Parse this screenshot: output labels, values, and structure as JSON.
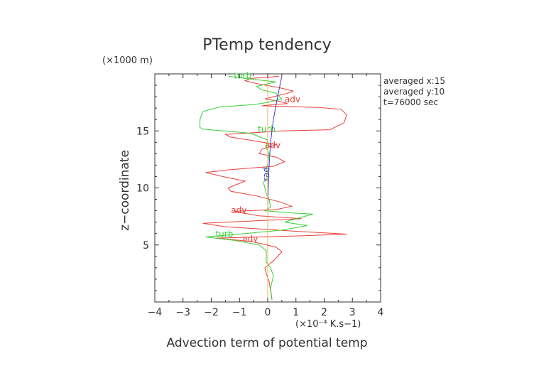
{
  "chart_data": {
    "type": "line",
    "title": "PTemp tendency",
    "xlabel": "Advection term of potential temp",
    "ylabel": "z−coordinate",
    "x_unit": "(×10⁻⁴ K.s−1)",
    "y_unit": "(×1000 m)",
    "xlim": [
      -4,
      4
    ],
    "ylim": [
      0,
      20
    ],
    "grid": false,
    "x_ticks": [
      "−4",
      "−3",
      "−2",
      "−1",
      "0",
      "1",
      "2",
      "3",
      "4"
    ],
    "y_ticks": [
      "5",
      "10",
      "15"
    ],
    "notes": [
      "averaged  x:15",
      "averaged  y:10",
      "t=76000 sec"
    ],
    "series": [
      {
        "name": "adv",
        "color": "#e8403a",
        "points": [
          [
            0.15,
            0.2
          ],
          [
            0.1,
            1.0
          ],
          [
            0.05,
            1.8
          ],
          [
            -0.05,
            2.5
          ],
          [
            -0.1,
            3.0
          ],
          [
            0.2,
            3.6
          ],
          [
            0.5,
            4.4
          ],
          [
            0.3,
            4.8
          ],
          [
            -0.2,
            5.1
          ],
          [
            -0.6,
            5.3
          ],
          [
            -1.8,
            5.6
          ],
          [
            1.2,
            5.8
          ],
          [
            2.8,
            5.95
          ],
          [
            1.0,
            6.2
          ],
          [
            -1.5,
            6.6
          ],
          [
            -2.3,
            6.9
          ],
          [
            1.2,
            7.3
          ],
          [
            -0.3,
            7.55
          ],
          [
            -0.9,
            7.8
          ],
          [
            -1.2,
            7.95
          ],
          [
            0.3,
            8.1
          ],
          [
            0.85,
            8.4
          ],
          [
            0.4,
            8.8
          ],
          [
            -0.4,
            9.3
          ],
          [
            -1.3,
            9.7
          ],
          [
            -1.4,
            10.0
          ],
          [
            -0.8,
            10.6
          ],
          [
            -1.6,
            11.0
          ],
          [
            -2.2,
            11.35
          ],
          [
            -1.3,
            11.6
          ],
          [
            0.2,
            11.9
          ],
          [
            0.6,
            12.3
          ],
          [
            0.3,
            12.7
          ],
          [
            -0.3,
            13.0
          ],
          [
            -0.2,
            13.4
          ],
          [
            0.3,
            13.8
          ],
          [
            -0.4,
            14.1
          ],
          [
            -0.9,
            14.3
          ],
          [
            -1.3,
            14.45
          ],
          [
            -1.5,
            14.7
          ],
          [
            -0.8,
            14.8
          ],
          [
            0.5,
            15.0
          ],
          [
            2.2,
            15.1
          ],
          [
            2.7,
            15.7
          ],
          [
            2.8,
            16.4
          ],
          [
            2.6,
            16.9
          ],
          [
            1.8,
            17.05
          ],
          [
            0.6,
            17.15
          ],
          [
            -0.2,
            17.2
          ],
          [
            0.2,
            17.3
          ],
          [
            0.7,
            17.4
          ],
          [
            0.4,
            17.6
          ],
          [
            -0.1,
            17.8
          ],
          [
            0.2,
            18.0
          ],
          [
            0.7,
            18.3
          ],
          [
            0.9,
            18.5
          ],
          [
            0.4,
            18.8
          ],
          [
            -0.3,
            19.1
          ],
          [
            -0.8,
            19.4
          ],
          [
            -0.6,
            19.6
          ],
          [
            0.0,
            19.7
          ],
          [
            0.4,
            19.8
          ]
        ],
        "labels": [
          [
            0.6,
            17.5
          ],
          [
            -0.1,
            13.5
          ],
          [
            -1.3,
            7.8
          ],
          [
            -0.9,
            5.3
          ]
        ]
      },
      {
        "name": "turb",
        "color": "#36cf36",
        "points": [
          [
            0.15,
            0.2
          ],
          [
            0.1,
            1.2
          ],
          [
            0.2,
            2.3
          ],
          [
            0.1,
            3.0
          ],
          [
            -0.05,
            3.5
          ],
          [
            -0.05,
            4.5
          ],
          [
            -0.3,
            5.0
          ],
          [
            -1.2,
            5.4
          ],
          [
            -2.2,
            5.7
          ],
          [
            -0.8,
            6.0
          ],
          [
            0.5,
            6.3
          ],
          [
            1.4,
            6.7
          ],
          [
            0.6,
            7.0
          ],
          [
            1.0,
            7.3
          ],
          [
            1.6,
            7.7
          ],
          [
            0.9,
            7.8
          ],
          [
            -0.1,
            8.0
          ],
          [
            0.1,
            8.3
          ],
          [
            0.05,
            9.0
          ],
          [
            -0.05,
            9.5
          ],
          [
            -0.1,
            10.0
          ],
          [
            -0.15,
            10.5
          ],
          [
            0.05,
            11.0
          ],
          [
            -0.05,
            11.6
          ],
          [
            0.0,
            12.2
          ],
          [
            0.05,
            13.0
          ],
          [
            -0.05,
            13.5
          ],
          [
            0.0,
            14.2
          ],
          [
            -0.6,
            14.8
          ],
          [
            -2.3,
            15.15
          ],
          [
            -2.4,
            15.3
          ],
          [
            -2.4,
            16.0
          ],
          [
            -2.3,
            16.7
          ],
          [
            -1.7,
            17.1
          ],
          [
            -0.5,
            17.3
          ],
          [
            0.0,
            17.5
          ],
          [
            0.5,
            17.8
          ],
          [
            0.3,
            18.3
          ],
          [
            -0.2,
            18.6
          ],
          [
            -0.4,
            18.9
          ],
          [
            0.3,
            19.3
          ],
          [
            -0.8,
            19.6
          ],
          [
            -1.4,
            19.8
          ]
        ],
        "labels": [
          [
            -1.2,
            19.6
          ],
          [
            -0.35,
            14.9
          ],
          [
            -1.85,
            5.7
          ]
        ]
      },
      {
        "name": "rad",
        "color": "#3a3ad8",
        "points": [
          [
            0.0,
            0.2
          ],
          [
            0.0,
            2.0
          ],
          [
            0.0,
            4.0
          ],
          [
            0.0,
            6.0
          ],
          [
            0.0,
            8.0
          ],
          [
            0.02,
            10.0
          ],
          [
            0.05,
            12.0
          ],
          [
            0.1,
            14.0
          ],
          [
            0.2,
            16.0
          ],
          [
            0.35,
            18.0
          ],
          [
            0.5,
            19.8
          ]
        ],
        "labels": [
          [
            0.05,
            10.6
          ]
        ]
      },
      {
        "color": "#f0b060",
        "points": [
          [
            0.0,
            0.2
          ],
          [
            0.0,
            5.0
          ],
          [
            0.0,
            10.0
          ],
          [
            0.0,
            15.0
          ],
          [
            0.0,
            19.8
          ]
        ],
        "labels": []
      }
    ]
  }
}
